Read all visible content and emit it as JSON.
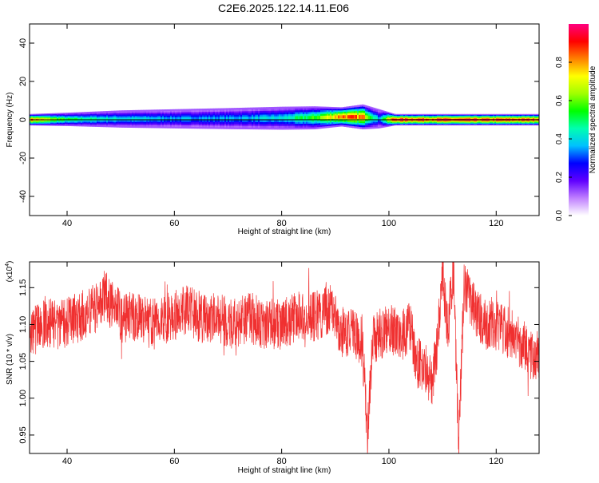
{
  "title": "C2E6.2025.122.14.11.E06",
  "chart_data": [
    {
      "type": "heatmap",
      "xlabel": "Height of straight line (km)",
      "ylabel": "Frequency (Hz)",
      "xlim": [
        33,
        128
      ],
      "ylim": [
        -50,
        50
      ],
      "xticks": [
        40,
        60,
        80,
        100,
        120
      ],
      "yticks": [
        40,
        20,
        0,
        -20,
        -40
      ],
      "ytick_labels": [
        "40",
        "20",
        "0",
        "-20",
        "-40"
      ],
      "colorbar": {
        "label": "Normalized spectral amplitude",
        "range": [
          0,
          1
        ],
        "ticks": [
          0.0,
          0.2,
          0.4,
          0.6,
          0.8
        ],
        "tick_labels": [
          "0.0",
          "0.2",
          "0.4",
          "0.6",
          "0.8"
        ],
        "colors": [
          "#ffffff",
          "#c080ff",
          "#6000ff",
          "#0000ff",
          "#00c0ff",
          "#00ffb0",
          "#00ff00",
          "#a0ff00",
          "#ffff00",
          "#ff8000",
          "#ff0000",
          "#ff0080"
        ]
      },
      "band": [
        {
          "x": 33,
          "center": 0.0,
          "width": 3.0,
          "peak": 0.85
        },
        {
          "x": 40,
          "center": 0.2,
          "width": 3.5,
          "peak": 0.5
        },
        {
          "x": 50,
          "center": 0.4,
          "width": 4.5,
          "peak": 0.4
        },
        {
          "x": 60,
          "center": 0.5,
          "width": 5.0,
          "peak": 0.35
        },
        {
          "x": 70,
          "center": 0.6,
          "width": 5.5,
          "peak": 0.35
        },
        {
          "x": 80,
          "center": 0.8,
          "width": 6.0,
          "peak": 0.4
        },
        {
          "x": 86,
          "center": 1.0,
          "width": 6.0,
          "peak": 0.55
        },
        {
          "x": 91,
          "center": 1.5,
          "width": 5.0,
          "peak": 0.85
        },
        {
          "x": 95,
          "center": 1.5,
          "width": 6.5,
          "peak": 0.8
        },
        {
          "x": 98,
          "center": 0.5,
          "width": 5.0,
          "peak": 0.35
        },
        {
          "x": 101,
          "center": 0.0,
          "width": 3.0,
          "peak": 0.95
        },
        {
          "x": 113,
          "center": 0.0,
          "width": 3.0,
          "peak": 0.9
        },
        {
          "x": 128,
          "center": 0.0,
          "width": 3.0,
          "peak": 0.9
        }
      ]
    },
    {
      "type": "line",
      "xlabel": "Height of straight line (km)",
      "ylabel": "SNR (10 * v/v)",
      "y_multiplier": "(x10",
      "y_multiplier_exp": "4",
      "y_multiplier_close": ")",
      "xlim": [
        33,
        128
      ],
      "ylim": [
        0.925,
        1.185
      ],
      "xticks": [
        40,
        60,
        80,
        100,
        120
      ],
      "yticks": [
        0.95,
        1.0,
        1.05,
        1.1,
        1.15
      ],
      "ytick_labels": [
        "0.95",
        "1.00",
        "1.05",
        "1.10",
        "1.15"
      ],
      "series": [
        {
          "color": "#f03030",
          "x": [
            33,
            36,
            39,
            42,
            45,
            47,
            50,
            53,
            56,
            59,
            62,
            65,
            68,
            71,
            74,
            77,
            80,
            83,
            86,
            89,
            91,
            93,
            95,
            96,
            97,
            99,
            100,
            102,
            104,
            105,
            107,
            108,
            109,
            110,
            111,
            112,
            113,
            114,
            116,
            118,
            120,
            122,
            124,
            126,
            128
          ],
          "y": [
            1.09,
            1.1,
            1.1,
            1.11,
            1.12,
            1.14,
            1.11,
            1.11,
            1.1,
            1.11,
            1.12,
            1.11,
            1.11,
            1.1,
            1.11,
            1.1,
            1.1,
            1.11,
            1.11,
            1.12,
            1.09,
            1.09,
            1.08,
            0.95,
            1.08,
            1.09,
            1.1,
            1.08,
            1.1,
            1.05,
            1.04,
            1.02,
            1.07,
            1.17,
            1.09,
            1.18,
            0.93,
            1.15,
            1.12,
            1.1,
            1.1,
            1.09,
            1.08,
            1.06,
            1.06
          ],
          "noise_amplitude": 0.035,
          "samples": 2400
        }
      ]
    }
  ]
}
